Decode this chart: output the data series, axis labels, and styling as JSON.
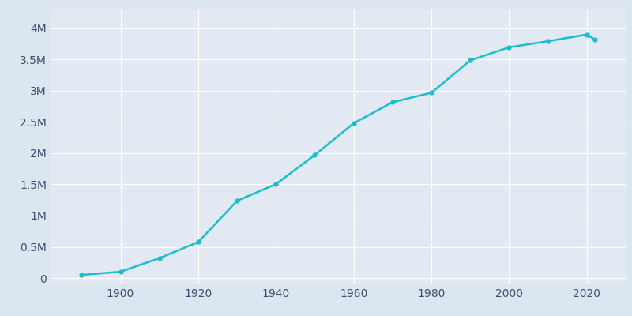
{
  "years": [
    1890,
    1900,
    1910,
    1920,
    1930,
    1940,
    1950,
    1960,
    1970,
    1980,
    1990,
    2000,
    2010,
    2020,
    2022
  ],
  "population": [
    50395,
    102479,
    319198,
    576673,
    1238048,
    1504277,
    1970358,
    2479015,
    2816061,
    2966850,
    3485398,
    3694820,
    3792621,
    3898747,
    3822238
  ],
  "line_color": "#17becf",
  "marker_color": "#17becf",
  "bg_color": "#dce6f0",
  "axes_bg_color": "#dce6f0",
  "plot_bg_color": "#e2e9f2",
  "grid_color": "#ffffff",
  "tick_color": "#3d4f6e",
  "ylim": [
    -100000,
    4300000
  ],
  "xlim": [
    1882,
    2030
  ],
  "yticks": [
    0,
    500000,
    1000000,
    1500000,
    2000000,
    2500000,
    3000000,
    3500000,
    4000000
  ],
  "xticks": [
    1900,
    1920,
    1940,
    1960,
    1980,
    2000,
    2020
  ]
}
